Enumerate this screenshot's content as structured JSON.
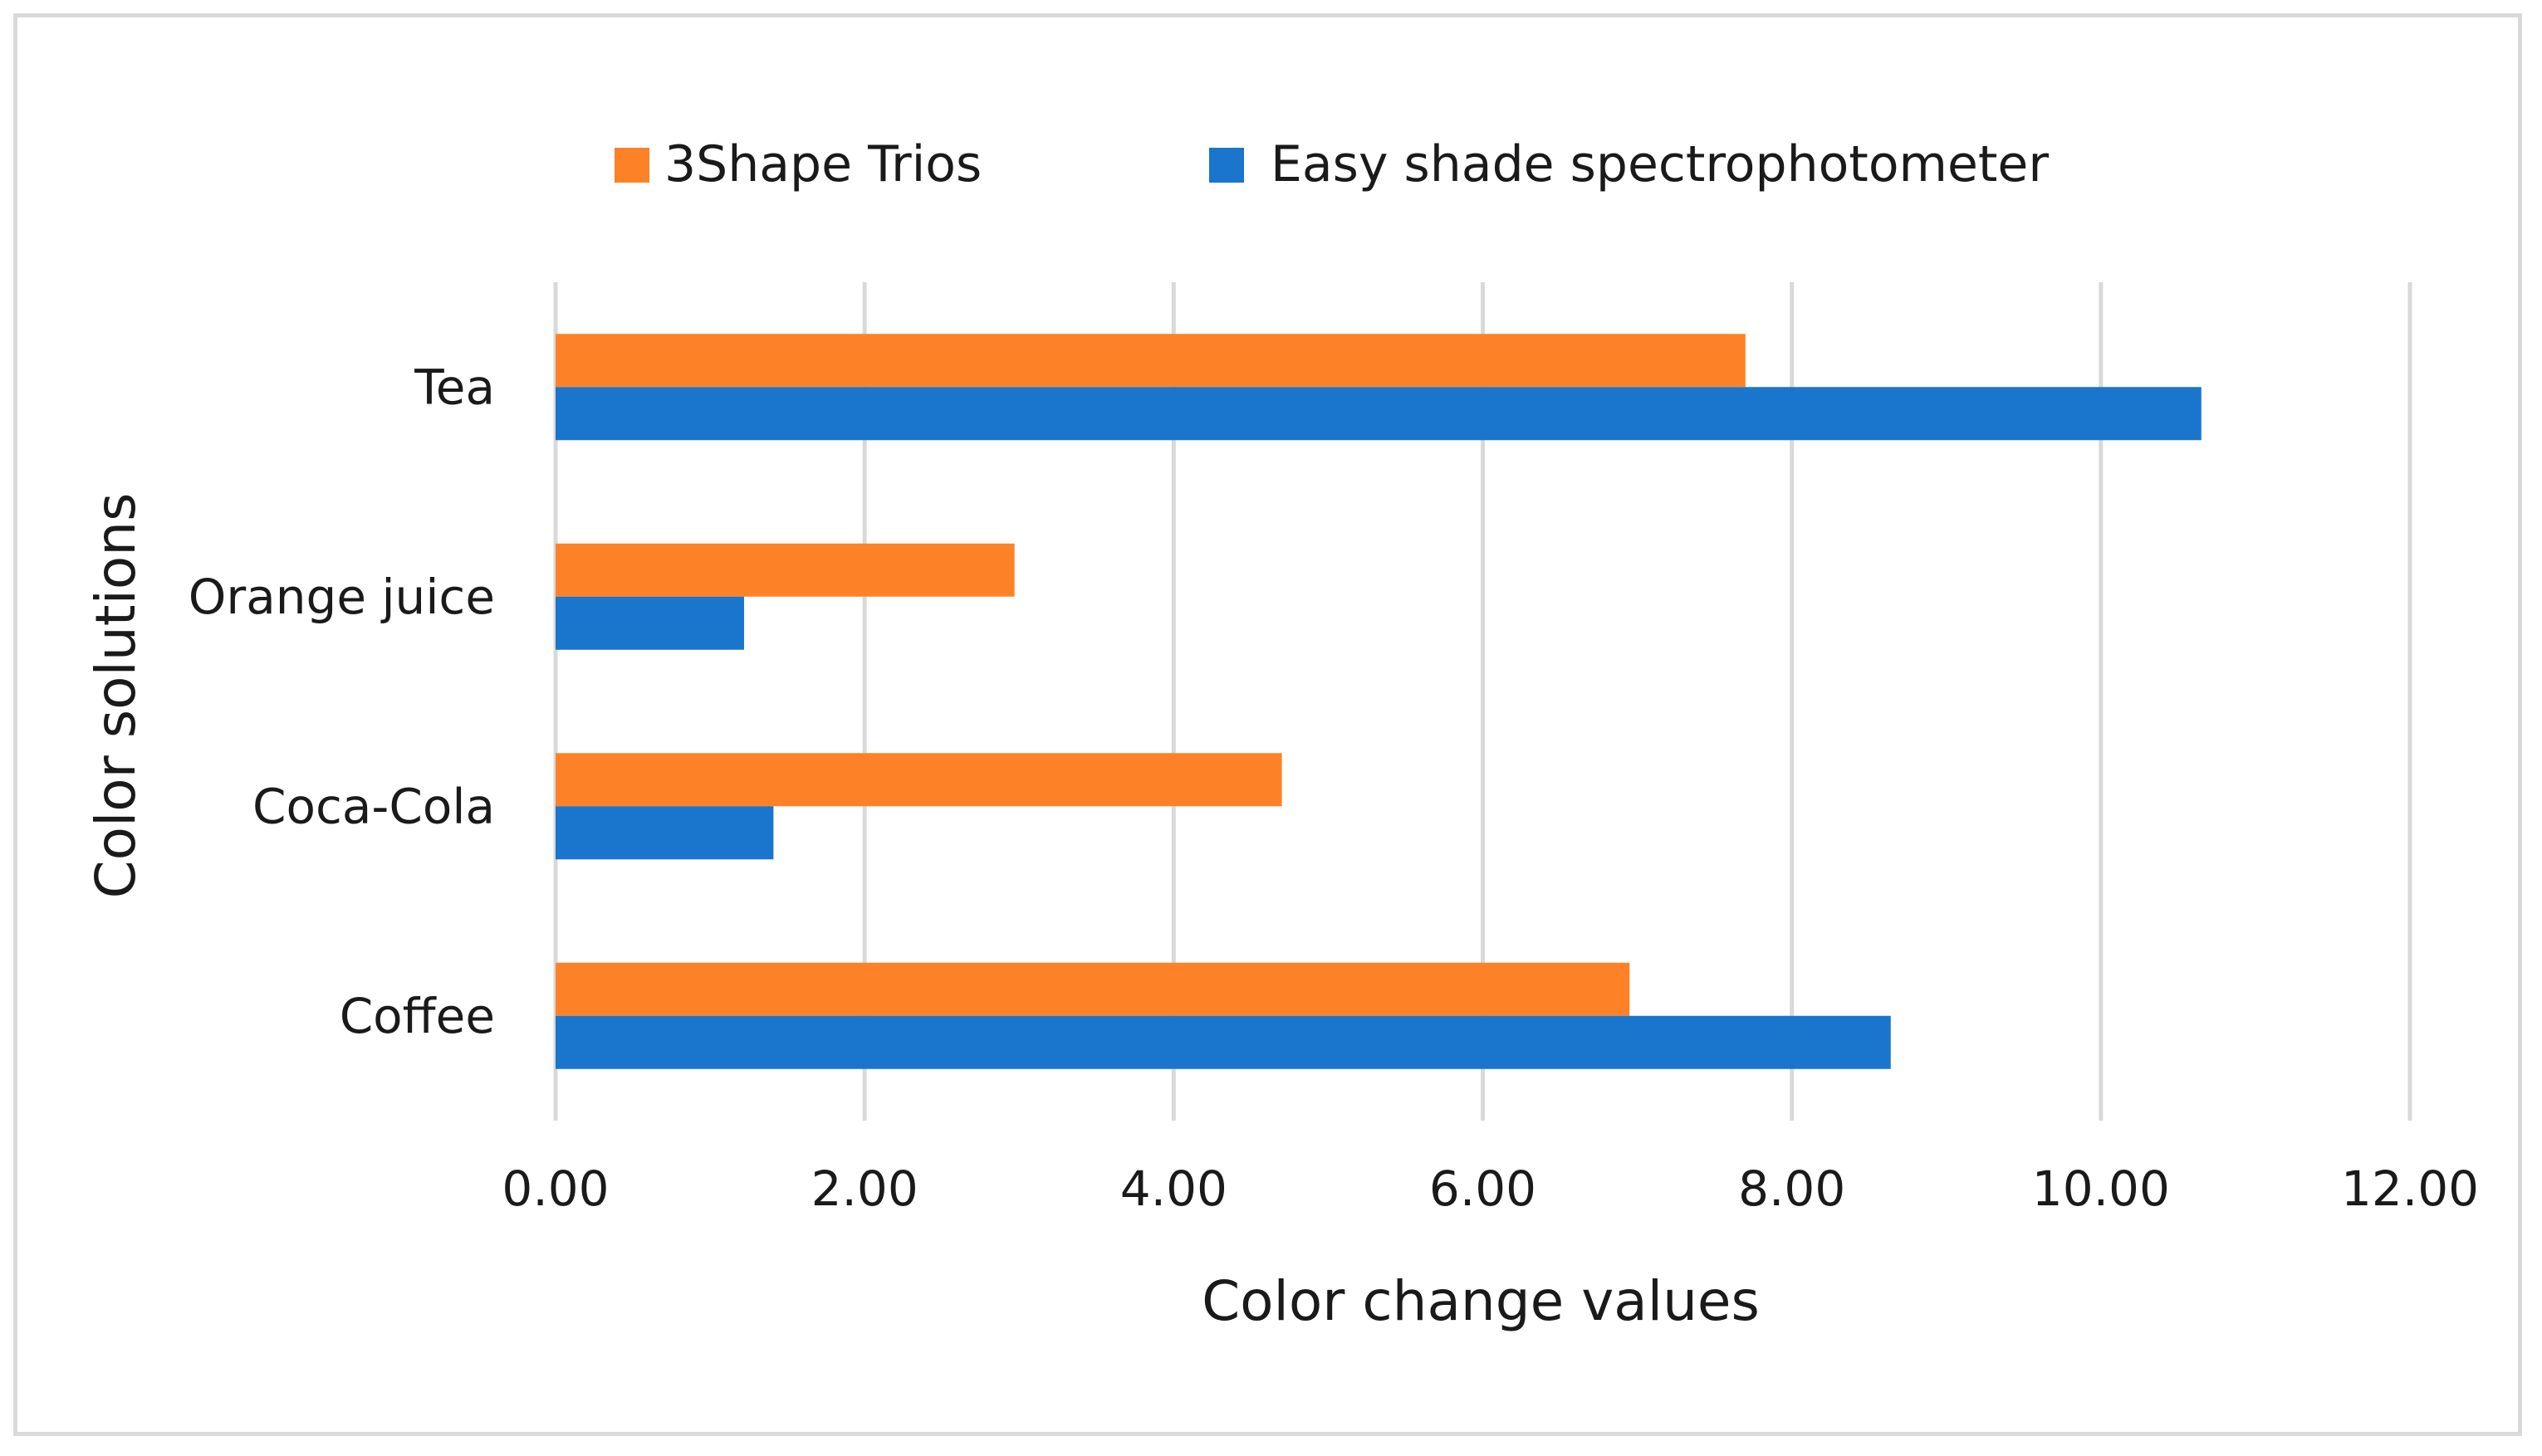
{
  "chart_data": {
    "type": "bar",
    "orientation": "horizontal",
    "categories": [
      "Coffee",
      "Coca-Cola",
      "Orange juice",
      "Tea"
    ],
    "series": [
      {
        "name": "3Shape Trios",
        "color": "#fd8227",
        "values": [
          6.95,
          4.7,
          2.97,
          7.7
        ]
      },
      {
        "name": "Easy shade spectrophotometer",
        "color": "#1a75cc",
        "values": [
          8.64,
          1.41,
          1.22,
          10.65
        ]
      }
    ],
    "xlabel": "Color change values",
    "ylabel": "Color solutions",
    "xlim": [
      0,
      12
    ],
    "x_ticks": [
      "0.00",
      "2.00",
      "4.00",
      "6.00",
      "8.00",
      "10.00",
      "12.00"
    ],
    "grid": "vertical",
    "legend_position": "top"
  }
}
